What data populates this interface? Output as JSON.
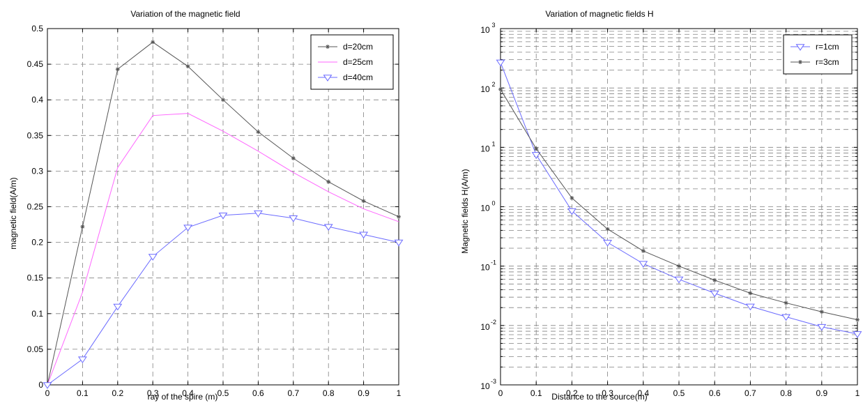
{
  "chart_data": [
    {
      "type": "line",
      "title": "Variation of the magnetic field",
      "xlabel": "ray of the spire (m)",
      "ylabel": "magnetic field(A/m)",
      "xlim": [
        0,
        1
      ],
      "ylim": [
        0,
        0.5
      ],
      "xticks": [
        "0",
        "0.1",
        "0.2",
        "0.3",
        "0.4",
        "0.5",
        "0.6",
        "0.7",
        "0.8",
        "0.9",
        "1"
      ],
      "yticks": [
        "0",
        "0.05",
        "0.1",
        "0.15",
        "0.2",
        "0.25",
        "0.3",
        "0.35",
        "0.4",
        "0.45",
        "0.5"
      ],
      "grid": true,
      "legend_position": "top-right",
      "x": [
        0,
        0.1,
        0.2,
        0.3,
        0.4,
        0.5,
        0.6,
        0.7,
        0.8,
        0.9,
        1.0
      ],
      "series": [
        {
          "name": "d=20cm",
          "color": "#555555",
          "marker": "star",
          "values": [
            0,
            0.222,
            0.443,
            0.481,
            0.447,
            0.4,
            0.355,
            0.318,
            0.285,
            0.258,
            0.236
          ]
        },
        {
          "name": "d=25cm",
          "color": "#ff66ff",
          "marker": "none",
          "values": [
            0,
            0.13,
            0.305,
            0.378,
            0.381,
            0.356,
            0.328,
            0.298,
            0.271,
            0.247,
            0.229
          ]
        },
        {
          "name": "d=40cm",
          "color": "#6b6bff",
          "marker": "triangle-down",
          "values": [
            0,
            0.036,
            0.11,
            0.18,
            0.221,
            0.238,
            0.241,
            0.234,
            0.222,
            0.211,
            0.2
          ]
        }
      ]
    },
    {
      "type": "line",
      "title": "Variation of magnetic fields  H",
      "xlabel": "Distance  to the source(m)",
      "ylabel": "Magnetic fields H(A/m)",
      "xlim": [
        0,
        1
      ],
      "ylim": [
        0.001,
        1000
      ],
      "yscale": "log",
      "xticks": [
        "0",
        "0.1",
        "0.2",
        "0.3",
        "0.4",
        "0.5",
        "0.6",
        "0.7",
        "0.8",
        "0.9",
        "1"
      ],
      "yticks": [
        {
          "base": "10",
          "exp": "-3"
        },
        {
          "base": "10",
          "exp": "-2"
        },
        {
          "base": "10",
          "exp": "-1"
        },
        {
          "base": "10",
          "exp": "0"
        },
        {
          "base": "10",
          "exp": "1"
        },
        {
          "base": "10",
          "exp": "2"
        },
        {
          "base": "10",
          "exp": "3"
        }
      ],
      "grid": true,
      "legend_position": "top-right",
      "x": [
        0,
        0.1,
        0.2,
        0.3,
        0.4,
        0.5,
        0.6,
        0.7,
        0.8,
        0.9,
        1.0
      ],
      "series": [
        {
          "name": "r=1cm",
          "color": "#6b6bff",
          "marker": "triangle-down",
          "values": [
            270,
            7.5,
            0.85,
            0.25,
            0.11,
            0.06,
            0.035,
            0.021,
            0.014,
            0.0095,
            0.0072
          ]
        },
        {
          "name": "r=3cm",
          "color": "#555555",
          "marker": "star",
          "values": [
            95,
            9.5,
            1.4,
            0.42,
            0.18,
            0.1,
            0.058,
            0.035,
            0.024,
            0.017,
            0.0125
          ]
        }
      ]
    }
  ]
}
